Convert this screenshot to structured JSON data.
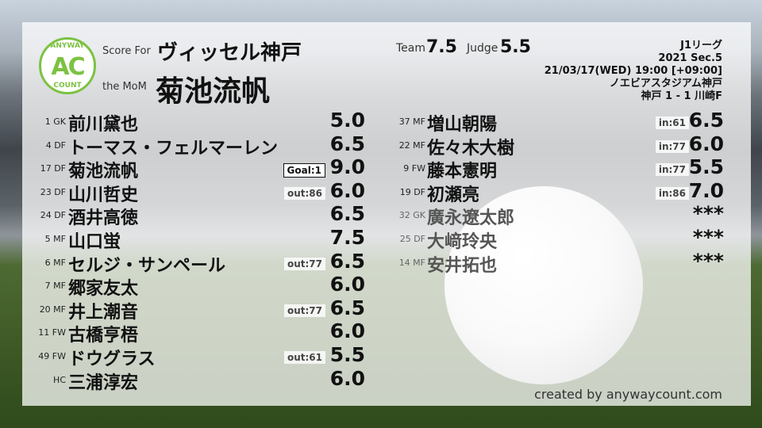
{
  "logo": {
    "top": "ANYWAY",
    "center": "AC",
    "bottom": "COUNT"
  },
  "header": {
    "score_for_label": "Score For",
    "team": "ヴィッセル神戸",
    "mom_label": "the MoM",
    "mom": "菊池流帆",
    "team_label": "Team",
    "team_score": "7.5",
    "judge_label": "Judge",
    "judge_score": "5.5"
  },
  "match": {
    "league": "J1リーグ",
    "section": "2021 Sec.5",
    "datetime": "21/03/17(WED) 19:00 [+09:00]",
    "stadium": "ノエビアスタジアム神戸",
    "result": "神戸 1 - 1 川崎F"
  },
  "left_players": [
    {
      "pos": "1 GK",
      "name": "前川黛也",
      "badge": "",
      "score": "5.0"
    },
    {
      "pos": "4 DF",
      "name": "トーマス・フェルマーレン",
      "badge": "",
      "score": "6.5"
    },
    {
      "pos": "17 DF",
      "name": "菊池流帆",
      "badge": "Goal:1",
      "score": "9.0"
    },
    {
      "pos": "23 DF",
      "name": "山川哲史",
      "badge": "out:86",
      "score": "6.0"
    },
    {
      "pos": "24 DF",
      "name": "酒井高徳",
      "badge": "",
      "score": "6.5"
    },
    {
      "pos": "5 MF",
      "name": "山口蛍",
      "badge": "",
      "score": "7.5"
    },
    {
      "pos": "6 MF",
      "name": "セルジ・サンペール",
      "badge": "out:77",
      "score": "6.5"
    },
    {
      "pos": "7 MF",
      "name": "郷家友太",
      "badge": "",
      "score": "6.0"
    },
    {
      "pos": "20 MF",
      "name": "井上潮音",
      "badge": "out:77",
      "score": "6.5"
    },
    {
      "pos": "11 FW",
      "name": "古橋亨梧",
      "badge": "",
      "score": "6.0"
    },
    {
      "pos": "49 FW",
      "name": "ドウグラス",
      "badge": "out:61",
      "score": "5.5"
    },
    {
      "pos": "HC",
      "name": "三浦淳宏",
      "badge": "",
      "score": "6.0"
    }
  ],
  "right_players": [
    {
      "pos": "37 MF",
      "name": "増山朝陽",
      "badge": "in:61",
      "score": "6.5"
    },
    {
      "pos": "22 MF",
      "name": "佐々木大樹",
      "badge": "in:77",
      "score": "6.0"
    },
    {
      "pos": "9 FW",
      "name": "藤本憲明",
      "badge": "in:77",
      "score": "5.5"
    },
    {
      "pos": "19 DF",
      "name": "初瀬亮",
      "badge": "in:86",
      "score": "7.0"
    },
    {
      "pos": "32 GK",
      "name": "廣永遼太郎",
      "badge": "",
      "score": "***"
    },
    {
      "pos": "25 DF",
      "name": "大﨑玲央",
      "badge": "",
      "score": "***"
    },
    {
      "pos": "14 MF",
      "name": "安井拓也",
      "badge": "",
      "score": "***"
    }
  ],
  "footer": "created by anywaycount.com",
  "colors": {
    "brand": "#7cc242"
  }
}
